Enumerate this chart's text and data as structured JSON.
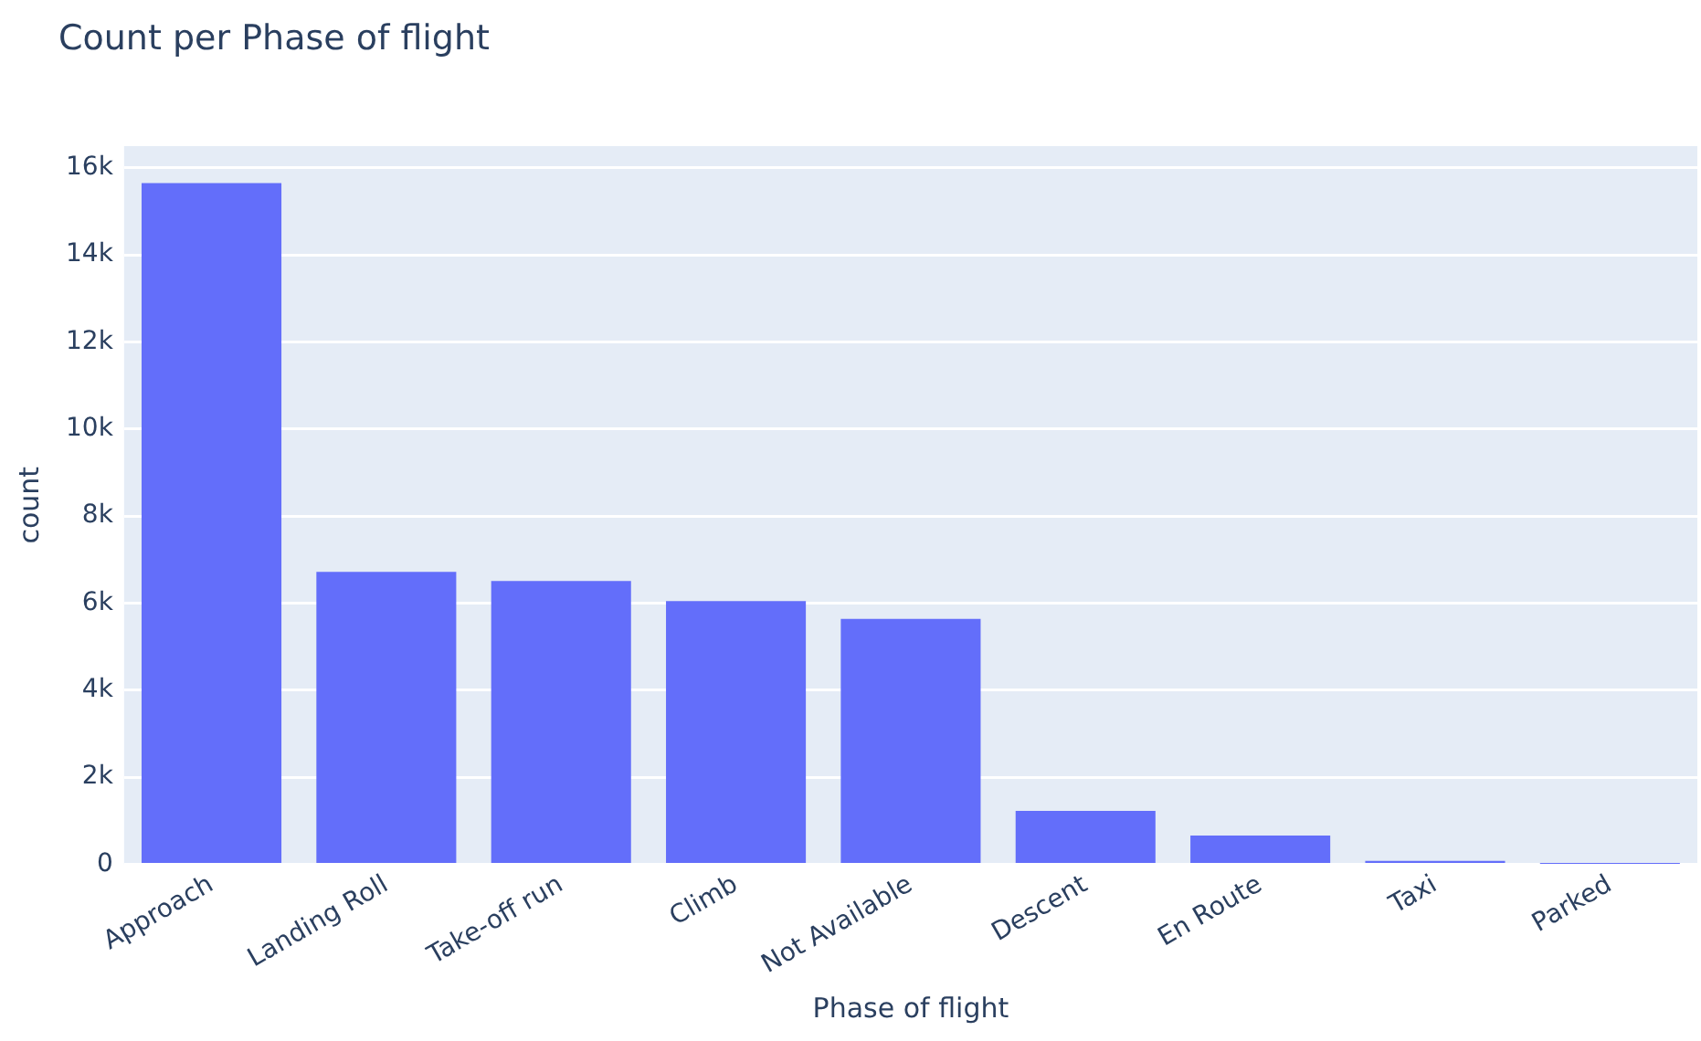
{
  "chart_data": {
    "type": "bar",
    "title": "Count per Phase of flight",
    "xlabel": "Phase of flight",
    "ylabel": "count",
    "categories": [
      "Approach",
      "Landing Roll",
      "Take-off run",
      "Climb",
      "Not Available",
      "Descent",
      "En Route",
      "Taxi",
      "Parked"
    ],
    "values": [
      15650,
      6720,
      6510,
      6050,
      5640,
      1230,
      660,
      80,
      10
    ],
    "color": "#636efa",
    "ylim": [
      0,
      16500
    ],
    "yticks": [
      {
        "value": 0,
        "label": "0"
      },
      {
        "value": 2000,
        "label": "2k"
      },
      {
        "value": 4000,
        "label": "4k"
      },
      {
        "value": 6000,
        "label": "6k"
      },
      {
        "value": 8000,
        "label": "8k"
      },
      {
        "value": 10000,
        "label": "10k"
      },
      {
        "value": 12000,
        "label": "12k"
      },
      {
        "value": 14000,
        "label": "14k"
      },
      {
        "value": 16000,
        "label": "16k"
      }
    ],
    "grid": "y",
    "legend": false
  }
}
